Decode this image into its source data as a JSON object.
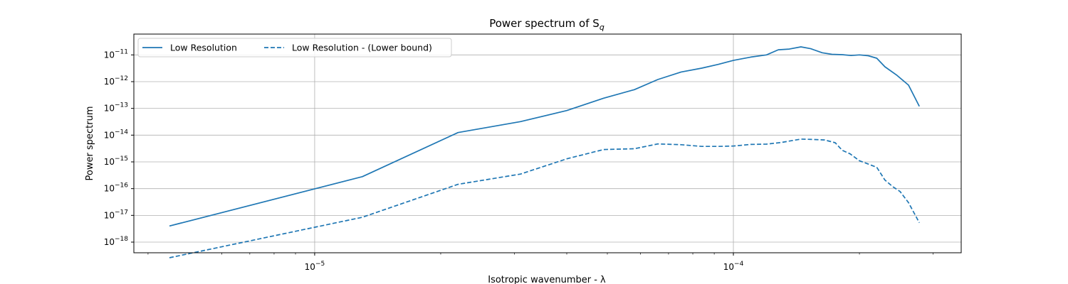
{
  "chart_data": {
    "type": "line",
    "title": "Power spectrum of S",
    "title_sub": "q",
    "xlabel": "Isotropic wavenumber - λ",
    "ylabel": "Power spectrum",
    "xscale": "log",
    "yscale": "log",
    "xlim": [
      3.7e-06,
      0.00035
    ],
    "ylim": [
      4e-19,
      6e-11
    ],
    "grid": true,
    "legend_position": "top-left",
    "legend_columns": 2,
    "x_ticks": [
      {
        "value": 1e-05,
        "base": "10",
        "exp": "−5"
      },
      {
        "value": 0.0001,
        "base": "10",
        "exp": "−4"
      }
    ],
    "y_ticks": [
      {
        "value": 1e-18,
        "base": "10",
        "exp": "−18"
      },
      {
        "value": 1e-17,
        "base": "10",
        "exp": "−17"
      },
      {
        "value": 1e-16,
        "base": "10",
        "exp": "−16"
      },
      {
        "value": 1e-15,
        "base": "10",
        "exp": "−15"
      },
      {
        "value": 1e-14,
        "base": "10",
        "exp": "−14"
      },
      {
        "value": 1e-13,
        "base": "10",
        "exp": "−13"
      },
      {
        "value": 1e-12,
        "base": "10",
        "exp": "−12"
      },
      {
        "value": 1e-11,
        "base": "10",
        "exp": "−11"
      }
    ],
    "series": [
      {
        "name": "Low Resolution",
        "color": "#1f77b4",
        "style": "solid",
        "points": [
          [
            4.5e-06,
            4e-18
          ],
          [
            1.3e-05,
            2.8e-16
          ],
          [
            2.2e-05,
            1.25e-14
          ],
          [
            3.1e-05,
            3.2e-14
          ],
          [
            4e-05,
            8.3e-14
          ],
          [
            4.9e-05,
            2.4e-13
          ],
          [
            5.8e-05,
            5e-13
          ],
          [
            6.6e-05,
            1.2e-12
          ],
          [
            7.5e-05,
            2.3e-12
          ],
          [
            8.4e-05,
            3.2e-12
          ],
          [
            9.2e-05,
            4.4e-12
          ],
          [
            0.0001,
            6.2e-12
          ],
          [
            0.00011,
            8.3e-12
          ],
          [
            0.00012,
            1e-11
          ],
          [
            0.000128,
            1.55e-11
          ],
          [
            0.000136,
            1.65e-11
          ],
          [
            0.000145,
            2e-11
          ],
          [
            0.000153,
            1.7e-11
          ],
          [
            0.000163,
            1.2e-11
          ],
          [
            0.000172,
            1.05e-11
          ],
          [
            0.000182,
            1.02e-11
          ],
          [
            0.000191,
            9.5e-12
          ],
          [
            0.0002,
            1e-11
          ],
          [
            0.00021,
            9.3e-12
          ],
          [
            0.00022,
            7.5e-12
          ],
          [
            0.00023,
            3.6e-12
          ],
          [
            0.000245,
            1.8e-12
          ],
          [
            0.000262,
            7.4e-13
          ],
          [
            0.000278,
            1.2e-13
          ]
        ]
      },
      {
        "name": "Low Resolution - (Lower bound)",
        "color": "#1f77b4",
        "style": "dashed",
        "points": [
          [
            4.5e-06,
            2.6e-19
          ],
          [
            1.3e-05,
            8.5e-18
          ],
          [
            2.2e-05,
            1.45e-16
          ],
          [
            3.1e-05,
            3.5e-16
          ],
          [
            4e-05,
            1.3e-15
          ],
          [
            4.9e-05,
            2.9e-15
          ],
          [
            5.8e-05,
            3.1e-15
          ],
          [
            6.6e-05,
            4.7e-15
          ],
          [
            7.5e-05,
            4.4e-15
          ],
          [
            8.4e-05,
            3.8e-15
          ],
          [
            9.2e-05,
            3.8e-15
          ],
          [
            0.0001,
            3.9e-15
          ],
          [
            0.00011,
            4.5e-15
          ],
          [
            0.00012,
            4.6e-15
          ],
          [
            0.00013,
            5.3e-15
          ],
          [
            0.000145,
            7.1e-15
          ],
          [
            0.000155,
            6.9e-15
          ],
          [
            0.000165,
            6.6e-15
          ],
          [
            0.000175,
            5.2e-15
          ],
          [
            0.000182,
            2.7e-15
          ],
          [
            0.00019,
            2e-15
          ],
          [
            0.0002,
            1.1e-15
          ],
          [
            0.00022,
            6.3e-16
          ],
          [
            0.00023,
            2.1e-16
          ],
          [
            0.00024,
            1.2e-16
          ],
          [
            0.00025,
            7.8e-17
          ],
          [
            0.000262,
            3e-17
          ],
          [
            0.000278,
            5.3e-18
          ]
        ]
      }
    ]
  }
}
